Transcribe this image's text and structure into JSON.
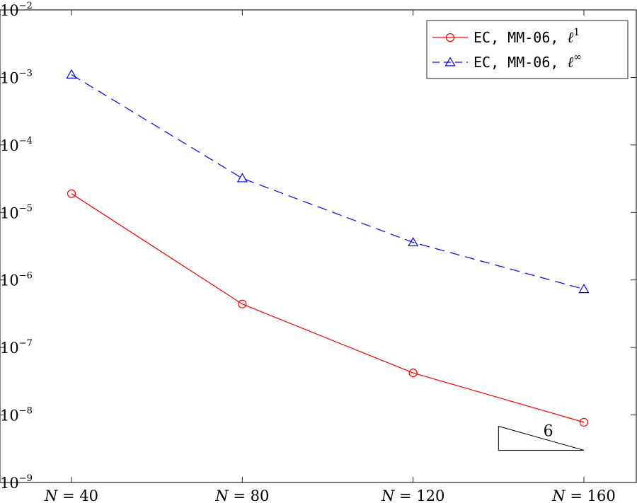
{
  "chart_data": {
    "type": "line",
    "title": "",
    "xlabel": "",
    "ylabel": "",
    "x": [
      40,
      80,
      120,
      160
    ],
    "x_tick_labels": [
      "N = 40",
      "N = 80",
      "N = 120",
      "N = 160"
    ],
    "y_scale": "log",
    "ylim": [
      1e-09,
      0.01
    ],
    "y_tick_labels": [
      {
        "base": "10",
        "exp": "−2",
        "value": 0.01
      },
      {
        "base": "10",
        "exp": "−3",
        "value": 0.001
      },
      {
        "base": "10",
        "exp": "−4",
        "value": 0.0001
      },
      {
        "base": "10",
        "exp": "−5",
        "value": 1e-05
      },
      {
        "base": "10",
        "exp": "−6",
        "value": 1e-06
      },
      {
        "base": "10",
        "exp": "−7",
        "value": 1e-07
      },
      {
        "base": "10",
        "exp": "−8",
        "value": 1e-08
      },
      {
        "base": "10",
        "exp": "−9",
        "value": 1e-09
      }
    ],
    "grid": false,
    "legend_position": "top-right",
    "series": [
      {
        "legend_label": "EC, MM-06, ",
        "legend_symbol": "ℓ",
        "legend_superscript": "1",
        "values": [
          1.9e-05,
          4.4e-07,
          4.2e-08,
          7.8e-09
        ],
        "color": "#ff0000",
        "marker": "circle",
        "dash": "solid"
      },
      {
        "legend_label": "EC, MM-06, ",
        "legend_symbol": "ℓ",
        "legend_superscript": "∞",
        "values": [
          0.0011,
          3.2e-05,
          3.6e-06,
          7.3e-07
        ],
        "color": "#0000ff",
        "marker": "triangle",
        "dash": "dashed"
      }
    ],
    "slope_triangle": {
      "label": "6",
      "x_start": 140,
      "x_end": 160,
      "y_base": 3e-09,
      "slope": 6
    }
  }
}
